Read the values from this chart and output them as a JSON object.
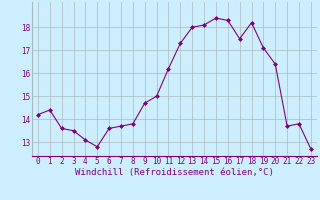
{
  "x": [
    0,
    1,
    2,
    3,
    4,
    5,
    6,
    7,
    8,
    9,
    10,
    11,
    12,
    13,
    14,
    15,
    16,
    17,
    18,
    19,
    20,
    21,
    22,
    23
  ],
  "y": [
    14.2,
    14.4,
    13.6,
    13.5,
    13.1,
    12.8,
    13.6,
    13.7,
    13.8,
    14.7,
    15.0,
    16.2,
    17.3,
    18.0,
    18.1,
    18.4,
    18.3,
    17.5,
    18.2,
    17.1,
    16.4,
    13.7,
    13.8,
    12.7
  ],
  "line_color": "#800080",
  "marker": "D",
  "marker_size": 2.0,
  "bg_color": "#cceeff",
  "grid_color": "#aabbbb",
  "xlabel": "Windchill (Refroidissement éolien,°C)",
  "xlabel_color": "#800080",
  "ylabel_ticks": [
    13,
    14,
    15,
    16,
    17,
    18
  ],
  "ylim": [
    12.4,
    19.1
  ],
  "xlim": [
    -0.5,
    23.5
  ],
  "tick_color": "#800080",
  "tick_fontsize": 5.5,
  "xlabel_fontsize": 6.5
}
